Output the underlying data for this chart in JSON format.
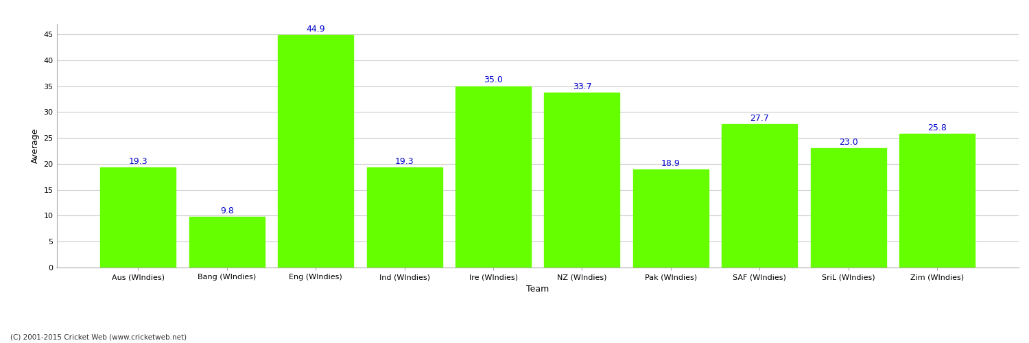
{
  "categories": [
    "Aus (WIndies)",
    "Bang (WIndies)",
    "Eng (WIndies)",
    "Ind (WIndies)",
    "Ire (WIndies)",
    "NZ (WIndies)",
    "Pak (WIndies)",
    "SAF (WIndies)",
    "SriL (WIndies)",
    "Zim (WIndies)"
  ],
  "values": [
    19.3,
    9.8,
    44.9,
    19.3,
    35.0,
    33.7,
    18.9,
    27.7,
    23.0,
    25.8
  ],
  "bar_color": "#66ff00",
  "bar_edge_color": "#66ff00",
  "label_color": "#0000cc",
  "xlabel": "Team",
  "ylabel": "Average",
  "ylim": [
    0,
    47
  ],
  "yticks": [
    0,
    5,
    10,
    15,
    20,
    25,
    30,
    35,
    40,
    45
  ],
  "grid_color": "#cccccc",
  "bg_color": "#ffffff",
  "label_fontsize": 9,
  "axis_label_fontsize": 9,
  "tick_fontsize": 8,
  "footer": "(C) 2001-2015 Cricket Web (www.cricketweb.net)"
}
